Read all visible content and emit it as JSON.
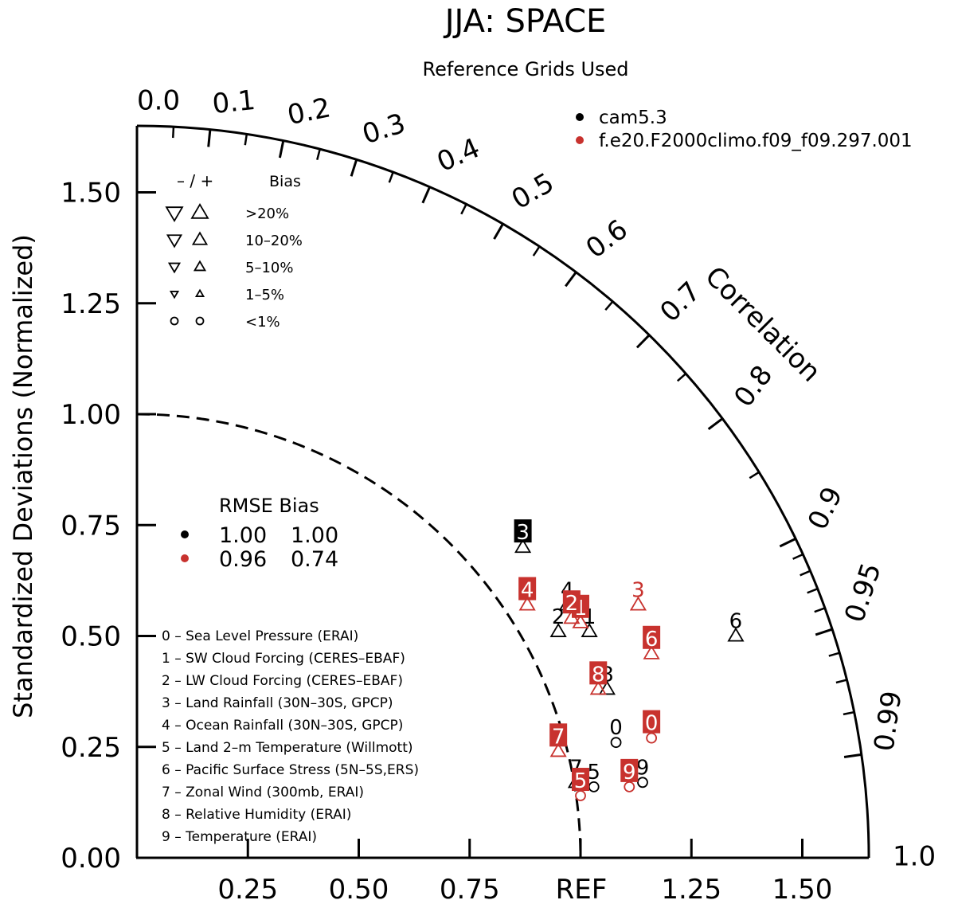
{
  "chart_data": {
    "type": "scatter",
    "subtype": "taylor-diagram",
    "title": "JJA: SPACE",
    "subtitle": "Reference Grids Used",
    "ylabel": "Standardized Deviations (Normalized)",
    "arc_label": "Correlation",
    "ref_label": "REF",
    "radial_max": 1.65,
    "ref_std": 1.0,
    "y_ticks": [
      {
        "v": 0,
        "label": "0.00"
      },
      {
        "v": 0.25,
        "label": "0.25"
      },
      {
        "v": 0.5,
        "label": "0.50"
      },
      {
        "v": 0.75,
        "label": "0.75"
      },
      {
        "v": 1.0,
        "label": "1.00"
      },
      {
        "v": 1.25,
        "label": "1.25"
      },
      {
        "v": 1.5,
        "label": "1.50"
      }
    ],
    "x_ticks": [
      {
        "v": 0.25,
        "label": "0.25"
      },
      {
        "v": 0.5,
        "label": "0.50"
      },
      {
        "v": 0.75,
        "label": "0.75"
      },
      {
        "v": 1.25,
        "label": "1.25"
      },
      {
        "v": 1.5,
        "label": "1.50"
      }
    ],
    "corr_labels": [
      {
        "v": 0.0,
        "label": "0.0"
      },
      {
        "v": 0.1,
        "label": "0.1"
      },
      {
        "v": 0.2,
        "label": "0.2"
      },
      {
        "v": 0.3,
        "label": "0.3"
      },
      {
        "v": 0.4,
        "label": "0.4"
      },
      {
        "v": 0.5,
        "label": "0.5"
      },
      {
        "v": 0.6,
        "label": "0.6"
      },
      {
        "v": 0.7,
        "label": "0.7"
      },
      {
        "v": 0.8,
        "label": "0.8"
      },
      {
        "v": 0.9,
        "label": "0.9"
      },
      {
        "v": 0.95,
        "label": "0.95"
      },
      {
        "v": 0.99,
        "label": "0.99"
      },
      {
        "v": 1.0,
        "label": "1.0"
      }
    ],
    "corr_minor_ticks": [
      0.05,
      0.15,
      0.25,
      0.35,
      0.45,
      0.55,
      0.65,
      0.75,
      0.85,
      0.91,
      0.92,
      0.93,
      0.94,
      0.96,
      0.97,
      0.98
    ],
    "legend": {
      "series": [
        {
          "name": "cam5.3",
          "color": "#000000"
        },
        {
          "name": "f.e20.F2000climo.f09_f09.297.001",
          "color": "#c8322e"
        }
      ],
      "bias_header": {
        "signs": "– / +",
        "label": "Bias"
      },
      "bias_rows": [
        {
          "label": ">20%",
          "marker": "triangle",
          "size": 10
        },
        {
          "label": "10–20%",
          "marker": "triangle",
          "size": 8.5
        },
        {
          "label": "5–10%",
          "marker": "triangle",
          "size": 6.5
        },
        {
          "label": "1–5%",
          "marker": "triangle",
          "size": 4.5
        },
        {
          "label": "<1%",
          "marker": "circle",
          "size": 4.5
        }
      ],
      "rmse": {
        "header": "RMSE Bias",
        "rows": [
          {
            "color": "#000000",
            "rmse": "1.00",
            "bias": "1.00"
          },
          {
            "color": "#c8322e",
            "rmse": "0.96",
            "bias": "0.74"
          }
        ]
      },
      "variables": [
        "0 – Sea Level Pressure (ERAI)",
        "1 – SW Cloud Forcing (CERES–EBAF)",
        "2 – LW Cloud Forcing (CERES–EBAF)",
        "3 – Land Rainfall (30N–30S, GPCP)",
        "4 – Ocean Rainfall (30N–30S, GPCP)",
        "5 – Land 2–m Temperature (Willmott)",
        "6 – Pacific Surface Stress (5N–5S,ERS)",
        "7 – Zonal Wind (300mb, ERAI)",
        "8 – Relative Humidity (ERAI)",
        "9 – Temperature (ERAI)"
      ]
    },
    "series": [
      {
        "name": "cam5.3",
        "color": "#000000",
        "points": [
          {
            "id": "0",
            "x": 1.08,
            "y": 0.26,
            "marker": "circle",
            "bias": "+",
            "boxed": false
          },
          {
            "id": "1",
            "x": 1.02,
            "y": 0.51,
            "marker": "triangle",
            "bias": "+",
            "boxed": false
          },
          {
            "id": "2",
            "x": 0.95,
            "y": 0.51,
            "marker": "triangle",
            "bias": "+",
            "boxed": false
          },
          {
            "id": "3",
            "x": 0.87,
            "y": 0.7,
            "marker": "triangle",
            "bias": "+",
            "boxed": true
          },
          {
            "id": "4",
            "x": 0.97,
            "y": 0.57,
            "marker": "triangle",
            "bias": "+",
            "boxed": false
          },
          {
            "id": "5",
            "x": 1.03,
            "y": 0.16,
            "marker": "circle",
            "bias": "+",
            "boxed": false
          },
          {
            "id": "6",
            "x": 1.35,
            "y": 0.5,
            "marker": "triangle",
            "bias": "+",
            "boxed": false
          },
          {
            "id": "7",
            "x": 0.99,
            "y": 0.17,
            "marker": "triangle",
            "bias": "+",
            "boxed": false
          },
          {
            "id": "8",
            "x": 1.06,
            "y": 0.38,
            "marker": "triangle",
            "bias": "+",
            "boxed": false
          },
          {
            "id": "9",
            "x": 1.14,
            "y": 0.17,
            "marker": "circle",
            "bias": "+",
            "boxed": false
          }
        ]
      },
      {
        "name": "f.e20.F2000climo.f09_f09.297.001",
        "color": "#c8322e",
        "points": [
          {
            "id": "0",
            "x": 1.16,
            "y": 0.27,
            "marker": "circle",
            "bias": "+",
            "boxed": true
          },
          {
            "id": "1",
            "x": 1.0,
            "y": 0.53,
            "marker": "triangle",
            "bias": "+",
            "boxed": true
          },
          {
            "id": "2",
            "x": 0.98,
            "y": 0.54,
            "marker": "triangle",
            "bias": "+",
            "boxed": true
          },
          {
            "id": "3",
            "x": 1.13,
            "y": 0.57,
            "marker": "triangle",
            "bias": "+",
            "boxed": false
          },
          {
            "id": "4",
            "x": 0.88,
            "y": 0.57,
            "marker": "triangle",
            "bias": "+",
            "boxed": true
          },
          {
            "id": "5",
            "x": 1.0,
            "y": 0.14,
            "marker": "circle",
            "bias": "+",
            "boxed": true
          },
          {
            "id": "6",
            "x": 1.16,
            "y": 0.46,
            "marker": "triangle",
            "bias": "+",
            "boxed": true
          },
          {
            "id": "7",
            "x": 0.95,
            "y": 0.24,
            "marker": "triangle",
            "bias": "+",
            "boxed": true
          },
          {
            "id": "8",
            "x": 1.04,
            "y": 0.38,
            "marker": "triangle",
            "bias": "+",
            "boxed": true
          },
          {
            "id": "9",
            "x": 1.11,
            "y": 0.16,
            "marker": "circle",
            "bias": "+",
            "boxed": true
          }
        ]
      }
    ]
  }
}
